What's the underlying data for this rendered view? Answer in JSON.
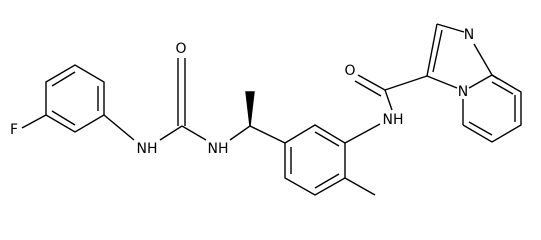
{
  "atoms": [
    {
      "label": "F"
    },
    {
      "label": "NH"
    },
    {
      "label": "O"
    },
    {
      "label": "NH"
    },
    {
      "label": "O"
    },
    {
      "label": "NH"
    },
    {
      "label": "N"
    },
    {
      "label": "N"
    }
  ]
}
